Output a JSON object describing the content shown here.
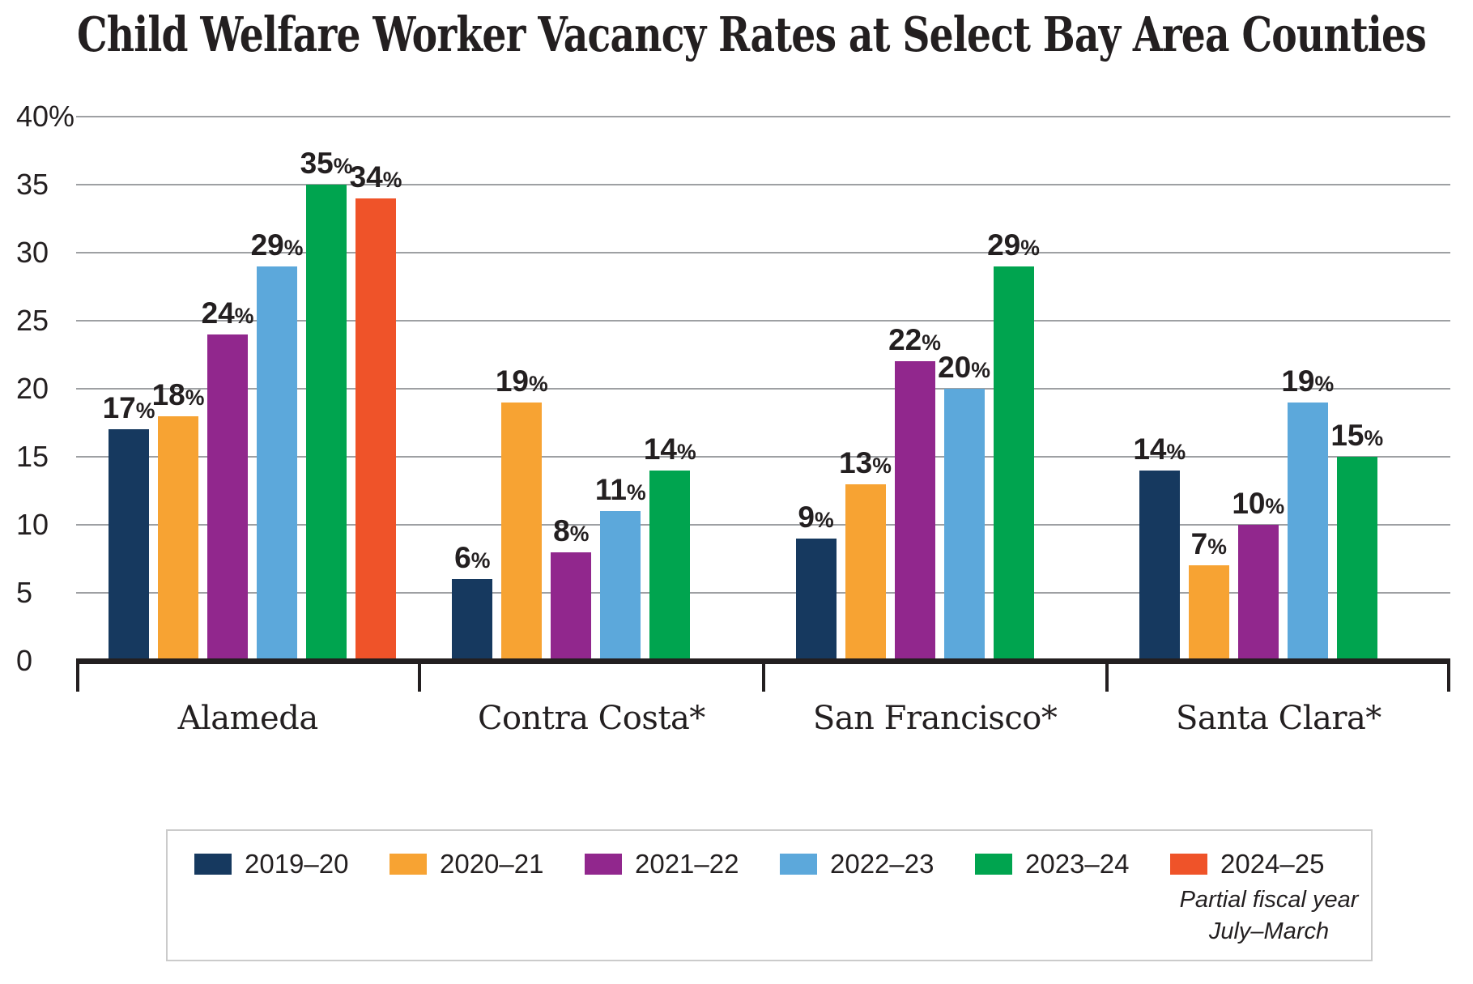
{
  "title": "Child Welfare Worker Vacancy Rates at Select Bay Area Counties",
  "chart_data": {
    "type": "bar",
    "categories": [
      "Alameda",
      "Contra Costa*",
      "San Francisco*",
      "Santa Clara*"
    ],
    "series": [
      {
        "name": "2019–20",
        "color": "#16395f",
        "values": [
          17,
          6,
          9,
          14
        ]
      },
      {
        "name": "2020–21",
        "color": "#f7a333",
        "values": [
          18,
          19,
          13,
          7
        ]
      },
      {
        "name": "2021–22",
        "color": "#91278d",
        "values": [
          24,
          8,
          22,
          10
        ]
      },
      {
        "name": "2022–23",
        "color": "#5ca8db",
        "values": [
          29,
          11,
          20,
          19
        ]
      },
      {
        "name": "2023–24",
        "color": "#00a44f",
        "values": [
          35,
          14,
          29,
          15
        ]
      },
      {
        "name": "2024–25",
        "color": "#ef5329",
        "values": [
          34,
          null,
          null,
          null
        ]
      }
    ],
    "value_suffix": "%",
    "ylim": [
      0,
      40
    ],
    "ytick_step": 5,
    "ytick_labels": [
      "0",
      "5",
      "10",
      "15",
      "20",
      "25",
      "30",
      "35",
      "40%"
    ],
    "grid": true,
    "legend_position": "bottom",
    "legend_note_lines": [
      "Partial fiscal year",
      "July–March"
    ]
  },
  "colors": {
    "text": "#231f20",
    "gridline": "#9ea0a3",
    "axis": "#231f20",
    "legend_border": "#cbcbcb",
    "background": "#ffffff"
  }
}
